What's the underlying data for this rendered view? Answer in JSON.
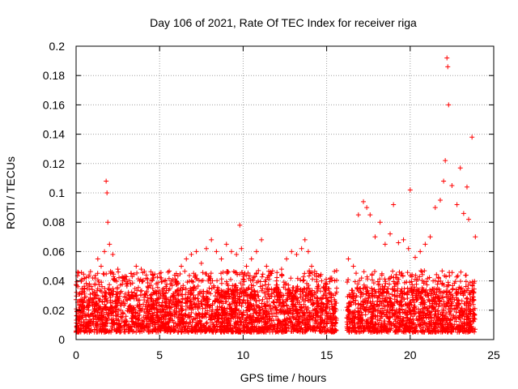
{
  "chart_data": {
    "type": "scatter",
    "title": "Day 106 of 2021, Rate Of TEC Index for receiver riga",
    "xlabel": "GPS time / hours",
    "ylabel": "ROTI / TECUs",
    "xlim": [
      0,
      25
    ],
    "ylim": [
      0,
      0.2
    ],
    "xticks": [
      0,
      5,
      10,
      15,
      20,
      25
    ],
    "yticks": [
      0,
      0.02,
      0.04,
      0.06,
      0.08,
      0.1,
      0.12,
      0.14,
      0.16,
      0.18,
      0.2
    ],
    "xtick_labels": [
      "0",
      "5",
      "10",
      "15",
      "20",
      "25"
    ],
    "ytick_labels": [
      "0",
      "0.02",
      "0.04",
      "0.06",
      "0.08",
      "0.1",
      "0.12",
      "0.14",
      "0.16",
      "0.18",
      "0.2"
    ],
    "grid": true,
    "marker": "+",
    "series": [
      {
        "name": "ROTI",
        "color": "#ff0000",
        "x": [
          0.1,
          0.3,
          0.5,
          0.8,
          1.0,
          1.3,
          1.5,
          1.7,
          1.8,
          1.85,
          1.9,
          2.0,
          2.2,
          2.5,
          2.8,
          3.0,
          3.3,
          3.6,
          3.9,
          4.2,
          4.5,
          4.8,
          5.1,
          5.4,
          5.7,
          6.0,
          6.3,
          6.6,
          6.9,
          7.2,
          7.5,
          7.8,
          8.1,
          8.4,
          8.7,
          9.0,
          9.3,
          9.6,
          9.8,
          9.9,
          10.2,
          10.5,
          10.8,
          11.1,
          11.4,
          11.7,
          12.0,
          12.3,
          12.6,
          12.9,
          13.2,
          13.5,
          13.7,
          13.9,
          14.1,
          14.4,
          14.7,
          15.0,
          15.3,
          15.6,
          16.3,
          16.6,
          16.9,
          17.2,
          17.4,
          17.6,
          17.9,
          18.2,
          18.5,
          18.8,
          19.0,
          19.3,
          19.6,
          19.9,
          20.0,
          20.3,
          20.6,
          20.9,
          21.2,
          21.5,
          21.8,
          22.0,
          22.1,
          22.2,
          22.25,
          22.3,
          22.5,
          22.8,
          23.0,
          23.2,
          23.4,
          23.5,
          23.7,
          23.9
        ],
        "y": [
          0.046,
          0.04,
          0.035,
          0.038,
          0.042,
          0.055,
          0.05,
          0.06,
          0.108,
          0.1,
          0.08,
          0.065,
          0.058,
          0.048,
          0.04,
          0.038,
          0.045,
          0.05,
          0.048,
          0.044,
          0.04,
          0.038,
          0.042,
          0.035,
          0.04,
          0.045,
          0.05,
          0.055,
          0.058,
          0.06,
          0.052,
          0.062,
          0.068,
          0.06,
          0.055,
          0.065,
          0.06,
          0.058,
          0.078,
          0.062,
          0.05,
          0.055,
          0.06,
          0.068,
          0.05,
          0.045,
          0.04,
          0.048,
          0.055,
          0.06,
          0.058,
          0.062,
          0.068,
          0.06,
          0.05,
          0.045,
          0.04,
          0.038,
          0.042,
          0.035,
          0.055,
          0.05,
          0.085,
          0.094,
          0.09,
          0.085,
          0.07,
          0.08,
          0.065,
          0.072,
          0.092,
          0.066,
          0.068,
          0.062,
          0.102,
          0.056,
          0.06,
          0.065,
          0.07,
          0.09,
          0.095,
          0.108,
          0.122,
          0.192,
          0.186,
          0.16,
          0.105,
          0.092,
          0.117,
          0.086,
          0.104,
          0.082,
          0.138,
          0.07
        ]
      }
    ],
    "dense_band": {
      "segments": [
        [
          0,
          15.6
        ],
        [
          16.2,
          23.9
        ]
      ],
      "low": 0.005,
      "typical_high": 0.035
    }
  }
}
